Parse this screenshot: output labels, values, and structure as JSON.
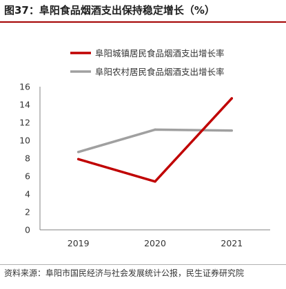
{
  "figure": {
    "title": "图37：阜阳食品烟酒支出保持稳定增长（%）",
    "source": "资料来源：阜阳市国民经济与社会发展统计公报，民生证券研究院"
  },
  "chart_data": {
    "type": "line",
    "x": [
      "2019",
      "2020",
      "2021"
    ],
    "series": [
      {
        "name": "阜阳城镇居民食品烟酒支出增长率",
        "color": "#c00000",
        "values": [
          7.9,
          5.4,
          14.7
        ]
      },
      {
        "name": "阜阳农村居民食品烟酒支出增长率",
        "color": "#a0a0a0",
        "values": [
          8.7,
          11.2,
          11.1
        ]
      }
    ],
    "yticks": [
      "0",
      "2",
      "4",
      "6",
      "8",
      "10",
      "12",
      "14",
      "16"
    ],
    "ylim": [
      0,
      16
    ],
    "legend_position": "top",
    "grid": false
  }
}
